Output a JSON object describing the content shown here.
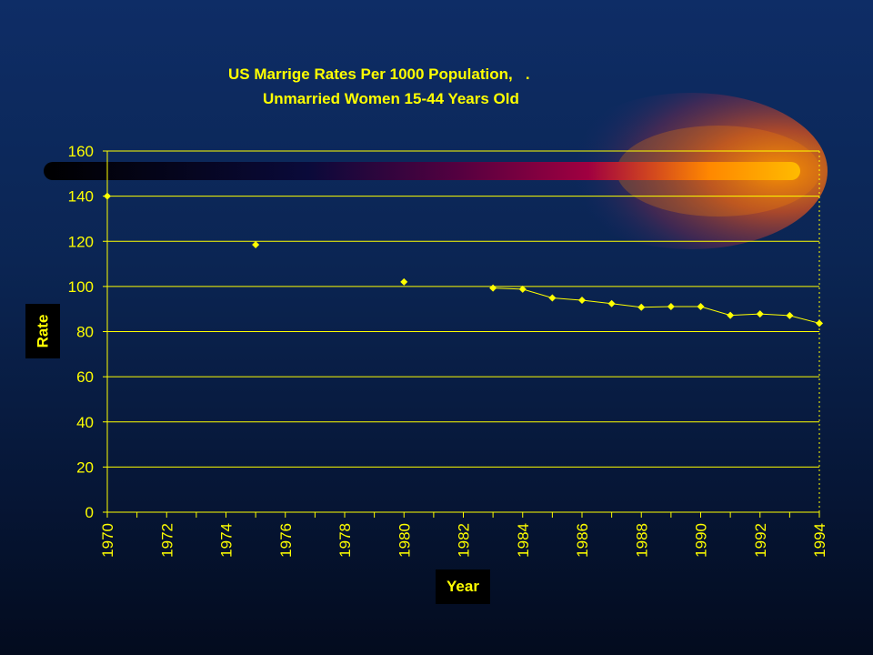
{
  "chart_data": {
    "type": "scatter",
    "title_line1": "US Marrige Rates Per 1000 Population,   .",
    "title_line2": "Unmarried Women 15-44 Years Old",
    "xlabel": "Year",
    "ylabel": "Rate",
    "xlim": [
      1970,
      1994
    ],
    "ylim": [
      0,
      160
    ],
    "yticks": [
      0,
      20,
      40,
      60,
      80,
      100,
      120,
      140,
      160
    ],
    "xticks": [
      1970,
      1972,
      1974,
      1976,
      1978,
      1980,
      1982,
      1984,
      1986,
      1988,
      1990,
      1992,
      1994
    ],
    "grid": true,
    "series": [
      {
        "x": [
          1970,
          1975,
          1980,
          1983,
          1984,
          1985,
          1986,
          1987,
          1988,
          1989,
          1990,
          1991,
          1992,
          1993,
          1994
        ],
        "y": [
          140,
          118.5,
          102,
          99.3,
          98.8,
          94.9,
          93.9,
          92.4,
          90.8,
          91.1,
          91.1,
          87.2,
          87.8,
          87.1,
          83.7
        ],
        "line_from_index": 3
      }
    ],
    "colors": {
      "accent": "#ffff00",
      "grid": "#ffff00",
      "background": "#0b2553"
    }
  }
}
